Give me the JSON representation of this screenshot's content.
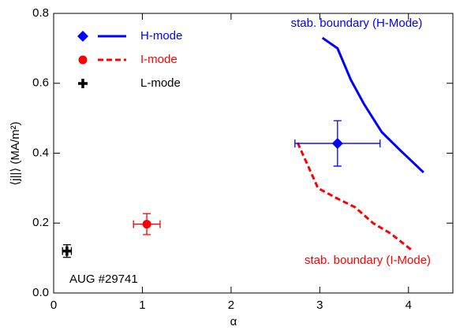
{
  "chart_data": {
    "type": "scatter",
    "x_label": "α",
    "y_label": "⟨j||⟩ (MA/m²)",
    "xlim": [
      0,
      4.5
    ],
    "ylim": [
      0,
      0.8
    ],
    "xticks": [
      0,
      1,
      2,
      3,
      4
    ],
    "yticks": [
      {
        "value": 0,
        "label": "0.0"
      },
      0.2,
      0.4,
      0.6,
      0.8
    ],
    "series": [
      {
        "name": "H-mode",
        "color": "#0000ff",
        "marker": "diamond",
        "x": [
          3.2
        ],
        "values": [
          0.428
        ],
        "xerr": [
          0.48
        ],
        "yerr": [
          0.065
        ]
      },
      {
        "name": "I-mode",
        "color": "#ff0000",
        "marker": "circle",
        "x": [
          1.05
        ],
        "values": [
          0.197
        ],
        "xerr": [
          0.15
        ],
        "yerr": [
          0.03
        ]
      },
      {
        "name": "L-mode",
        "color": "#000000",
        "marker": "plus",
        "x": [
          0.15
        ],
        "values": [
          0.12
        ],
        "xerr": [
          0.05
        ],
        "yerr": [
          0.018
        ]
      }
    ],
    "boundaries": [
      {
        "color": "#0000ff",
        "dash": false,
        "x": [
          3.03,
          3.2,
          3.35,
          3.5,
          3.7,
          3.9,
          4.17
        ],
        "values": [
          0.73,
          0.7,
          0.61,
          0.54,
          0.46,
          0.41,
          0.345
        ]
      },
      {
        "color": "#ff0000",
        "dash": true,
        "x": [
          2.75,
          2.98,
          3.2,
          3.4,
          3.6,
          3.8,
          4.05
        ],
        "values": [
          0.43,
          0.3,
          0.27,
          0.245,
          0.2,
          0.17,
          0.12
        ]
      }
    ],
    "annotations": [
      {
        "text": "stab. boundary (H-Mode)",
        "color": "#0000ff"
      },
      {
        "text": "stab. boundary (I-Mode)",
        "color": "#ff0000"
      },
      {
        "text": "AUG #29741",
        "color": "#000000"
      }
    ]
  }
}
